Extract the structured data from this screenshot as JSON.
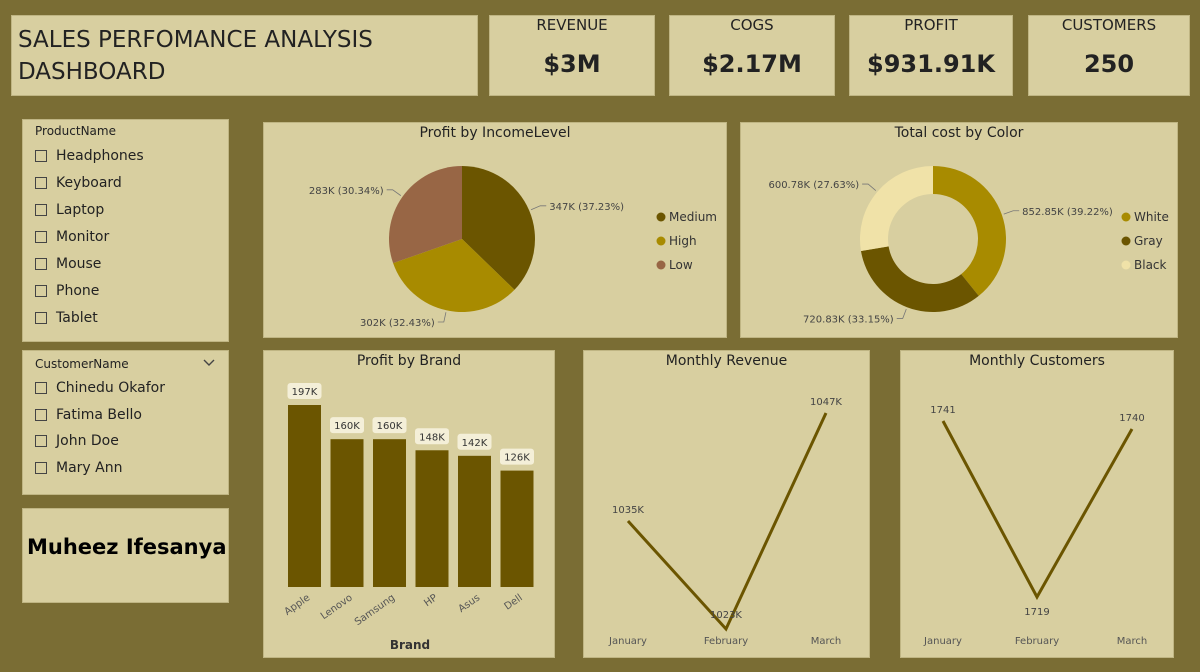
{
  "header": {
    "title": "SALES PERFOMANCE ANALYSIS\nDASHBOARD"
  },
  "kpis": [
    {
      "label": "REVENUE",
      "value": "$3M"
    },
    {
      "label": "COGS",
      "value": "$2.17M"
    },
    {
      "label": "PROFIT",
      "value": "$931.91K"
    },
    {
      "label": "CUSTOMERS",
      "value": "250"
    }
  ],
  "product_slicer": {
    "title": "ProductName",
    "items": [
      "Headphones",
      "Keyboard",
      "Laptop",
      "Monitor",
      "Mouse",
      "Phone",
      "Tablet"
    ]
  },
  "customer_slicer": {
    "title": "CustomerName",
    "items": [
      "Chinedu Okafor",
      "Fatima Bello",
      "John Doe",
      "Mary Ann"
    ]
  },
  "author": {
    "name": "Muheez Ifesanya"
  },
  "colors": {
    "background": "#7a6d34",
    "panel": "#d8cfa0",
    "dark_olive": "#6b5500",
    "gold": "#a88b00",
    "brown": "#986645",
    "cream": "#f0e2a8"
  },
  "chart_data": [
    {
      "id": "income",
      "type": "pie",
      "title": "Profit by IncomeLevel",
      "labels": [
        "Medium",
        "High",
        "Low"
      ],
      "values": [
        347,
        302,
        283
      ],
      "value_labels": [
        "347K (37.23%)",
        "302K (32.43%)",
        "283K (30.34%)"
      ],
      "colors": [
        "#6b5500",
        "#a88b00",
        "#986645"
      ],
      "legend": "right"
    },
    {
      "id": "color",
      "type": "pie",
      "donut": true,
      "title": "Total cost by Color",
      "labels": [
        "White",
        "Gray",
        "Black"
      ],
      "values": [
        852.85,
        720.83,
        600.78
      ],
      "value_labels": [
        "852.85K (39.22%)",
        "720.83K (33.15%)",
        "600.78K (27.63%)"
      ],
      "colors": [
        "#a88b00",
        "#6b5500",
        "#f0e2a8"
      ],
      "legend": "right"
    },
    {
      "id": "brand",
      "type": "bar",
      "title": "Profit by Brand",
      "xlabel": "Brand",
      "categories": [
        "Apple",
        "Lenovo",
        "Samsung",
        "HP",
        "Asus",
        "Dell"
      ],
      "values": [
        197,
        160,
        160,
        148,
        142,
        126
      ],
      "value_labels": [
        "197K",
        "160K",
        "160K",
        "148K",
        "142K",
        "126K"
      ],
      "color": "#6b5500",
      "ylim": [
        0,
        197
      ]
    },
    {
      "id": "revenue",
      "type": "line",
      "title": "Monthly Revenue",
      "categories": [
        "January",
        "February",
        "March"
      ],
      "values": [
        1035,
        1023,
        1047
      ],
      "value_labels": [
        "1035K",
        "1023K",
        "1047K"
      ],
      "color": "#6b5500"
    },
    {
      "id": "customers",
      "type": "line",
      "title": "Monthly Customers",
      "categories": [
        "January",
        "February",
        "March"
      ],
      "values": [
        1741,
        1719,
        1740
      ],
      "value_labels": [
        "1741",
        "1719",
        "1740"
      ],
      "color": "#6b5500"
    }
  ]
}
